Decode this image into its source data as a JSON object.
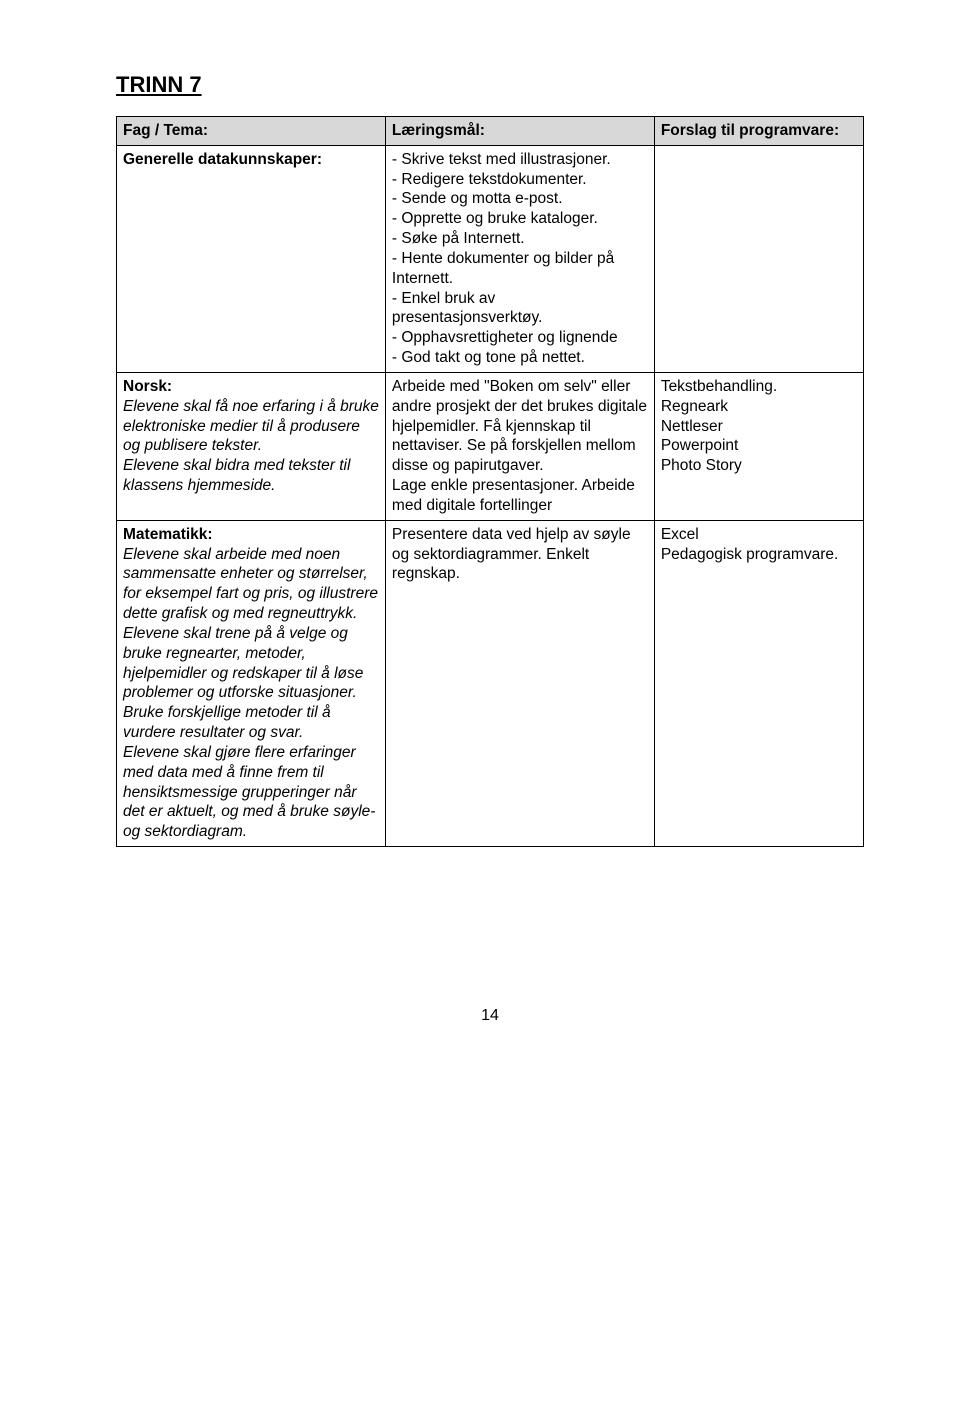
{
  "heading": "TRINN 7",
  "header": {
    "col1": "Fag / Tema:",
    "col2": "Læringsmål:",
    "col3": "Forslag til programvare:"
  },
  "row1": {
    "left_title": "Generelle datakunnskaper:",
    "mid_lines": [
      "- Skrive tekst med illustrasjoner.",
      "- Redigere tekstdokumenter.",
      "- Sende og motta e-post.",
      "- Opprette og bruke kataloger.",
      "- Søke på Internett.",
      "- Hente dokumenter og bilder på Internett.",
      "- Enkel bruk av presentasjonsverktøy.",
      "- Opphavsrettigheter og lignende",
      "- God takt og tone på nettet."
    ],
    "right": ""
  },
  "row2": {
    "left_title": "Norsk:",
    "left_body": "Elevene skal få noe erfaring i å bruke elektroniske medier til å produsere og publisere tekster.\nElevene skal bidra med tekster til klassens hjemmeside.",
    "mid": "Arbeide med \"Boken om selv\" eller andre prosjekt der det brukes digitale hjelpemidler. Få kjennskap til nettaviser. Se på forskjellen mellom disse og papirutgaver.\nLage enkle presentasjoner. Arbeide med digitale fortellinger",
    "right": "Tekstbehandling.\nRegneark\nNettleser\nPowerpoint\nPhoto Story"
  },
  "row3": {
    "left_title": "Matematikk:",
    "left_body": "Elevene skal arbeide med noen sammensatte enheter og størrelser, for eksempel fart og pris, og illustrere dette grafisk og med regneuttrykk. Elevene skal trene på å velge og bruke regnearter, metoder, hjelpemidler og redskaper  til å løse problemer og utforske situasjoner. Bruke forskjellige metoder til å vurdere resultater og svar.\nElevene skal gjøre flere erfaringer med data med å finne frem til hensiktsmessige grupperinger når det er aktuelt, og med å bruke søyle- og sektordiagram.",
    "mid": "Presentere data ved hjelp av søyle og sektordiagrammer. Enkelt regnskap.",
    "right": "Excel\nPedagogisk programvare."
  },
  "pagenum": "14"
}
